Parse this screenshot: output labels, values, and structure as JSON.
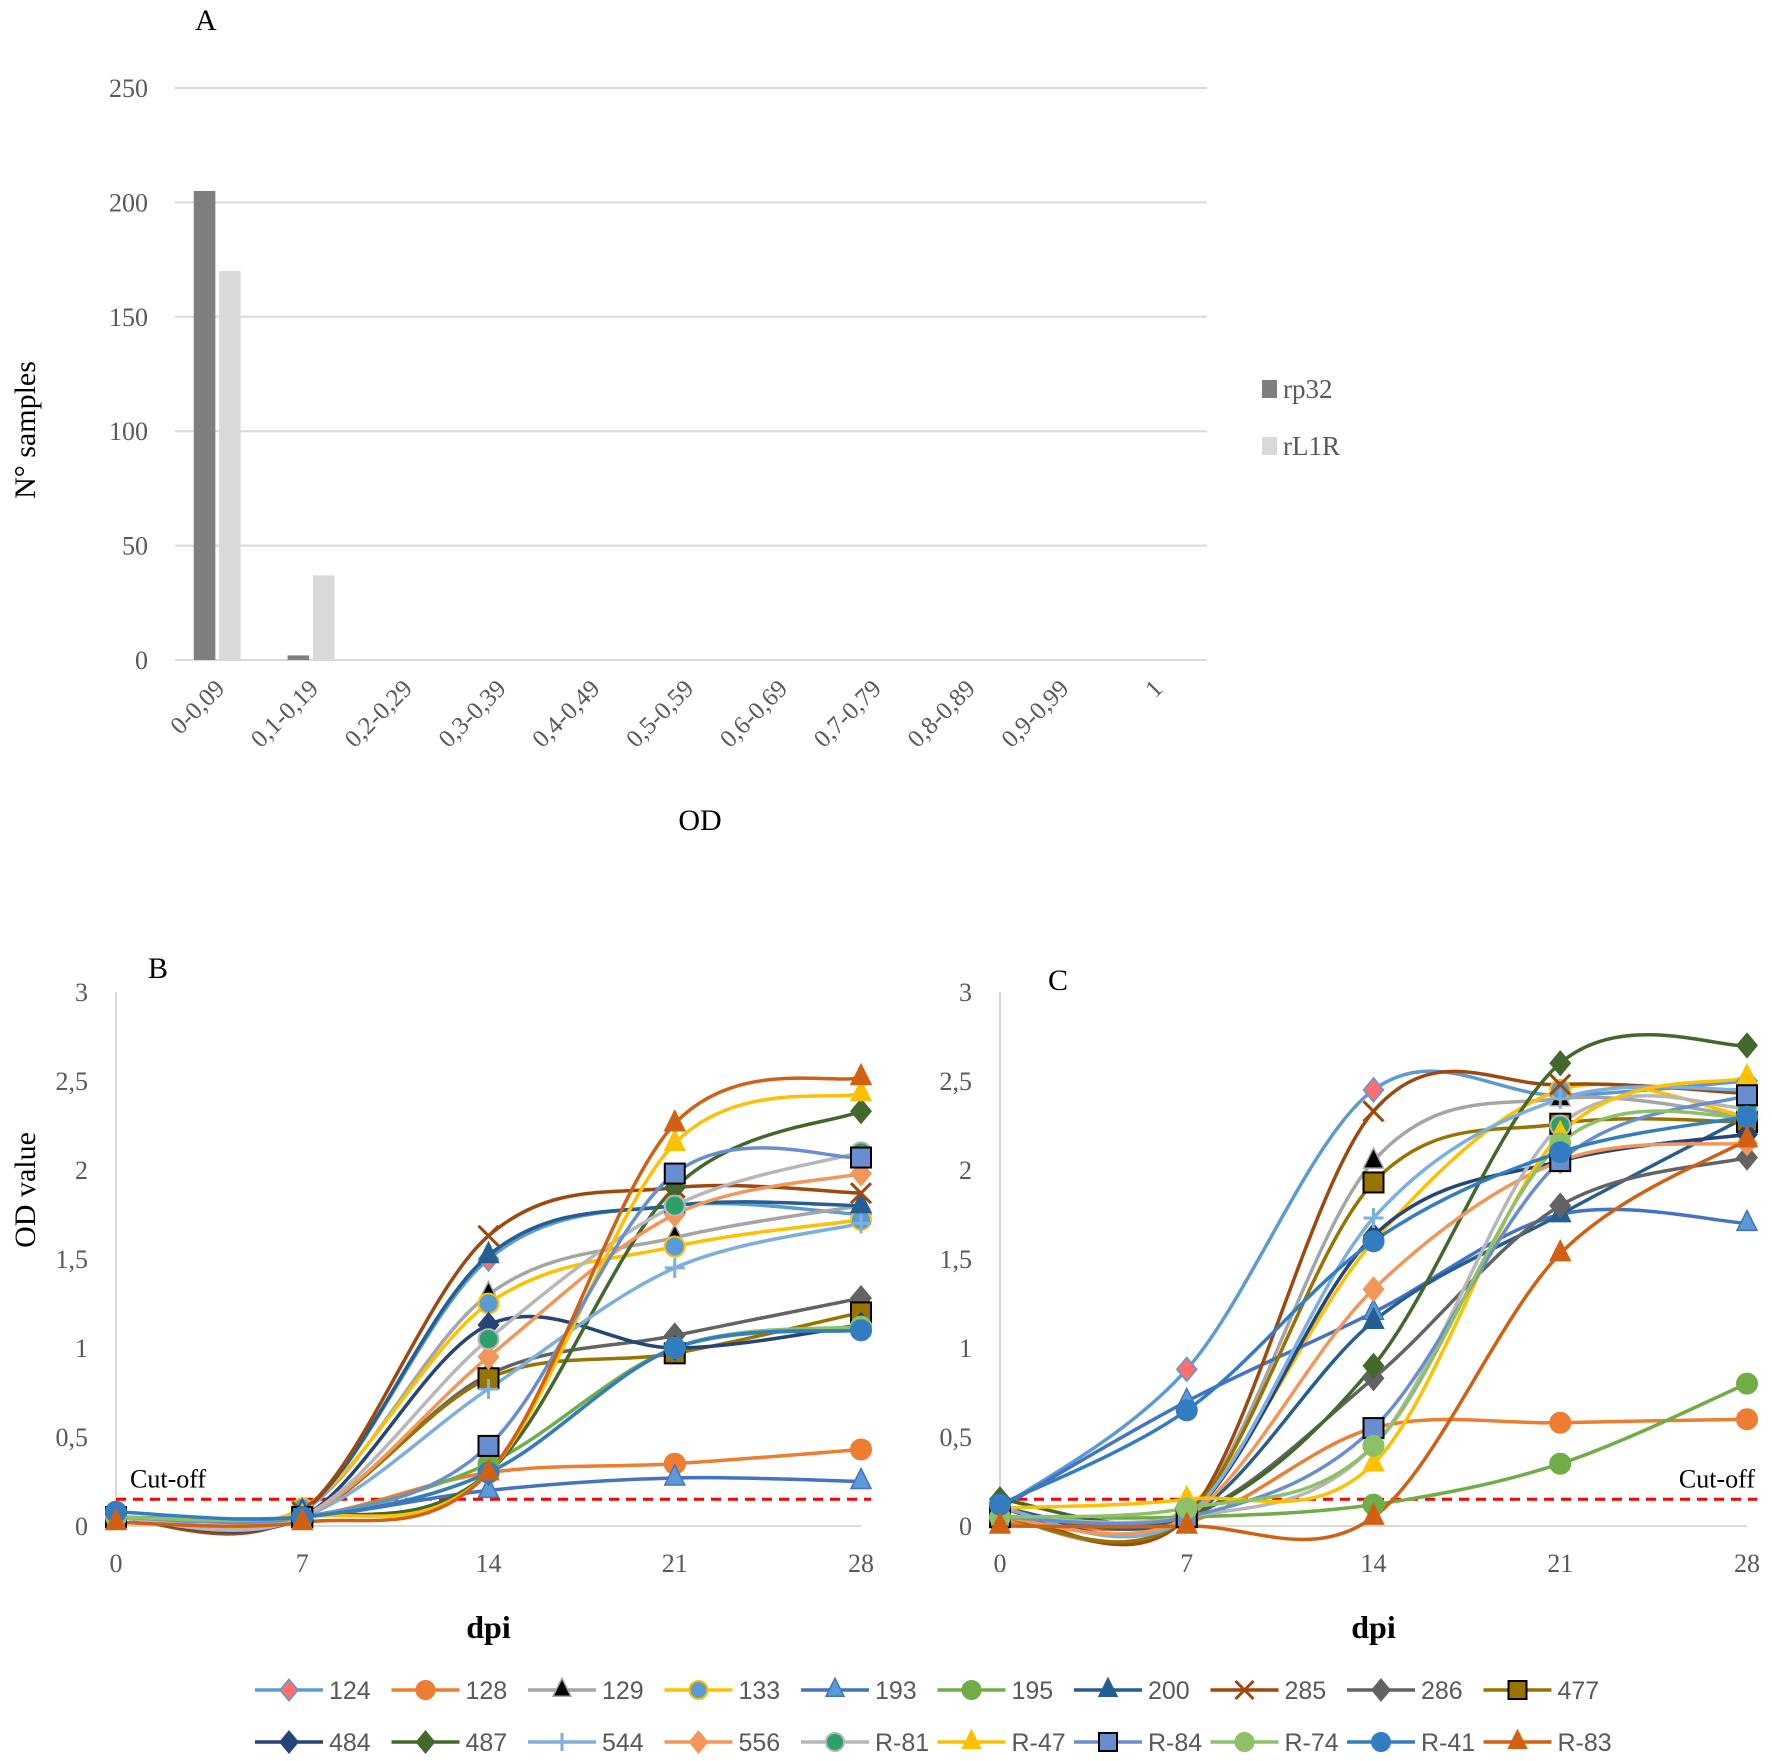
{
  "chart_data": [
    {
      "panel": "A",
      "type": "bar",
      "title": "A",
      "xlabel": "OD",
      "ylabel": "N° samples",
      "ylim": [
        0,
        250
      ],
      "yticks": [
        0,
        50,
        100,
        150,
        200,
        250
      ],
      "categories": [
        "0-0,09",
        "0,1-0,19",
        "0,2-0,29",
        "0,3-0,39",
        "0,4-0,49",
        "0,5-0,59",
        "0,6-0,69",
        "0,7-0,79",
        "0,8-0,89",
        "0,9-0,99",
        "1"
      ],
      "series": [
        {
          "name": "rp32",
          "color": "#7f7f7f",
          "values": [
            205,
            2,
            0,
            0,
            0,
            0,
            0,
            0,
            0,
            0,
            0
          ]
        },
        {
          "name": "rL1R",
          "color": "#d9d9d9",
          "values": [
            170,
            37,
            0,
            0,
            0,
            0,
            0,
            0,
            0,
            0,
            0
          ]
        }
      ],
      "legend": "right",
      "grid": true
    },
    {
      "panel": "B",
      "type": "line",
      "title": "B",
      "xlabel": "dpi",
      "ylabel": "OD value",
      "x": [
        0,
        7,
        14,
        21,
        28
      ],
      "xlim": [
        0,
        28
      ],
      "ylim": [
        0,
        3
      ],
      "yticks": [
        "0",
        "0,5",
        "1",
        "1,5",
        "2",
        "2,5",
        "3"
      ],
      "cutoff": 0.15,
      "cutoff_label": "Cut-off",
      "series": [
        {
          "name": "124",
          "values": [
            0.05,
            0.08,
            1.5,
            1.8,
            1.75
          ]
        },
        {
          "name": "128",
          "values": [
            0.05,
            0.05,
            0.3,
            0.35,
            0.43
          ]
        },
        {
          "name": "129",
          "values": [
            0.05,
            0.08,
            1.3,
            1.62,
            1.8
          ]
        },
        {
          "name": "133",
          "values": [
            0.05,
            0.1,
            1.25,
            1.57,
            1.72
          ]
        },
        {
          "name": "193",
          "values": [
            0.05,
            0.05,
            0.2,
            0.27,
            0.25
          ]
        },
        {
          "name": "195",
          "values": [
            0.05,
            0.05,
            0.35,
            1.0,
            1.1
          ]
        },
        {
          "name": "200",
          "values": [
            0.05,
            0.08,
            1.52,
            1.8,
            1.8
          ]
        },
        {
          "name": "285",
          "values": [
            0.05,
            0.08,
            1.63,
            1.9,
            1.87
          ]
        },
        {
          "name": "286",
          "values": [
            0.05,
            0.05,
            0.85,
            1.07,
            1.28
          ]
        },
        {
          "name": "477",
          "values": [
            0.05,
            0.05,
            0.83,
            0.97,
            1.2
          ]
        },
        {
          "name": "484",
          "values": [
            0.05,
            0.05,
            1.13,
            1.0,
            1.13
          ]
        },
        {
          "name": "487",
          "values": [
            0.05,
            0.05,
            0.3,
            1.9,
            2.33
          ]
        },
        {
          "name": "544",
          "values": [
            0.05,
            0.05,
            0.77,
            1.45,
            1.7
          ]
        },
        {
          "name": "556",
          "values": [
            0.05,
            0.05,
            0.95,
            1.75,
            1.98
          ]
        },
        {
          "name": "R-81",
          "values": [
            0.05,
            0.05,
            1.05,
            1.8,
            2.1
          ]
        },
        {
          "name": "R-47",
          "values": [
            0.05,
            0.05,
            0.3,
            2.15,
            2.43
          ]
        },
        {
          "name": "R-84",
          "values": [
            0.05,
            0.05,
            0.45,
            1.98,
            2.07
          ]
        },
        {
          "name": "R-74",
          "values": [
            0.05,
            0.05,
            0.3,
            1.0,
            1.12
          ]
        },
        {
          "name": "R-41",
          "values": [
            0.08,
            0.05,
            0.3,
            1.0,
            1.1
          ]
        },
        {
          "name": "R-83",
          "values": [
            0.02,
            0.02,
            0.3,
            2.26,
            2.52
          ]
        }
      ]
    },
    {
      "panel": "C",
      "type": "line",
      "title": "C",
      "xlabel": "dpi",
      "ylabel": "",
      "x": [
        0,
        7,
        14,
        21,
        28
      ],
      "xlim": [
        0,
        28
      ],
      "ylim": [
        0,
        3
      ],
      "yticks": [
        "0",
        "0,5",
        "1",
        "1,5",
        "2",
        "2,5",
        "3"
      ],
      "cutoff": 0.15,
      "cutoff_label": "Cut-off",
      "series": [
        {
          "name": "124",
          "values": [
            0.1,
            0.88,
            2.45,
            2.42,
            2.5
          ]
        },
        {
          "name": "128",
          "values": [
            0.02,
            0.02,
            0.55,
            0.58,
            0.6
          ]
        },
        {
          "name": "129",
          "values": [
            0.05,
            0.05,
            2.05,
            2.4,
            2.3
          ]
        },
        {
          "name": "133",
          "values": [
            0.1,
            0.1,
            1.6,
            2.45,
            2.3
          ]
        },
        {
          "name": "193",
          "values": [
            0.1,
            0.7,
            1.2,
            1.75,
            1.7
          ]
        },
        {
          "name": "195",
          "values": [
            0.05,
            0.05,
            0.12,
            0.35,
            0.8
          ]
        },
        {
          "name": "200",
          "values": [
            0.1,
            0.05,
            1.15,
            1.75,
            2.3
          ]
        },
        {
          "name": "285",
          "values": [
            0.1,
            0.05,
            2.33,
            2.48,
            2.43
          ]
        },
        {
          "name": "286",
          "values": [
            0.05,
            0.05,
            0.83,
            1.8,
            2.07
          ]
        },
        {
          "name": "477",
          "values": [
            0.05,
            0.05,
            1.93,
            2.26,
            2.27
          ]
        },
        {
          "name": "484",
          "values": [
            0.1,
            0.05,
            1.63,
            2.05,
            2.2
          ]
        },
        {
          "name": "487",
          "values": [
            0.15,
            0.05,
            0.9,
            2.6,
            2.7
          ]
        },
        {
          "name": "544",
          "values": [
            0.1,
            0.05,
            1.73,
            2.4,
            2.45
          ]
        },
        {
          "name": "556",
          "values": [
            0.05,
            0.05,
            1.33,
            2.05,
            2.15
          ]
        },
        {
          "name": "R-81",
          "values": [
            0.05,
            0.05,
            0.45,
            2.25,
            2.35
          ]
        },
        {
          "name": "R-47",
          "values": [
            0.1,
            0.15,
            0.35,
            2.2,
            2.52
          ]
        },
        {
          "name": "R-84",
          "values": [
            0.05,
            0.05,
            0.55,
            2.05,
            2.42
          ]
        },
        {
          "name": "R-74",
          "values": [
            0.05,
            0.1,
            0.45,
            2.15,
            2.3
          ]
        },
        {
          "name": "R-41",
          "values": [
            0.12,
            0.65,
            1.6,
            2.1,
            2.3
          ]
        },
        {
          "name": "R-83",
          "values": [
            0,
            0,
            0.05,
            1.53,
            2.17
          ]
        }
      ]
    }
  ],
  "series_style": {
    "124": {
      "line": "#5b9bd5",
      "marker": "diamond",
      "fill": "#ff6f6f"
    },
    "128": {
      "line": "#ed7d31",
      "marker": "circle",
      "fill": "#ed7d31"
    },
    "129": {
      "line": "#a5a5a5",
      "marker": "triangle",
      "fill": "#000000"
    },
    "133": {
      "line": "#ffc000",
      "marker": "circle",
      "fill": "#5b9bd5"
    },
    "193": {
      "line": "#4472c4",
      "marker": "triangle",
      "fill": "#5b9bd5"
    },
    "195": {
      "line": "#70ad47",
      "marker": "circle",
      "fill": "#70ad47"
    },
    "200": {
      "line": "#255e91",
      "marker": "triangle",
      "fill": "#255e91"
    },
    "285": {
      "line": "#9e480e",
      "marker": "x",
      "fill": "#9e480e"
    },
    "286": {
      "line": "#636363",
      "marker": "diamond",
      "fill": "#636363"
    },
    "477": {
      "line": "#997300",
      "marker": "square",
      "fill": "#997300"
    },
    "484": {
      "line": "#264478",
      "marker": "diamond",
      "fill": "#264478"
    },
    "487": {
      "line": "#43682b",
      "marker": "diamond",
      "fill": "#43682b"
    },
    "544": {
      "line": "#7cafdd",
      "marker": "plus",
      "fill": "#7cafdd"
    },
    "556": {
      "line": "#f1975a",
      "marker": "diamond",
      "fill": "#f1975a"
    },
    "R-81": {
      "line": "#b7b7b7",
      "marker": "circle",
      "fill": "#2e9e6a"
    },
    "R-47": {
      "line": "#ffc000",
      "marker": "triangle",
      "fill": "#ffc000"
    },
    "R-84": {
      "line": "#698ed0",
      "marker": "square",
      "fill": "#698ed0"
    },
    "R-74": {
      "line": "#8cc168",
      "marker": "circle",
      "fill": "#8cc168"
    },
    "R-41": {
      "line": "#327dc2",
      "marker": "circle",
      "fill": "#327dc2"
    },
    "R-83": {
      "line": "#d26012",
      "marker": "triangle",
      "fill": "#d26012"
    }
  },
  "colors": {
    "grid": "#d9d9d9",
    "cutoff": "#ff0000",
    "text": "#595959"
  }
}
